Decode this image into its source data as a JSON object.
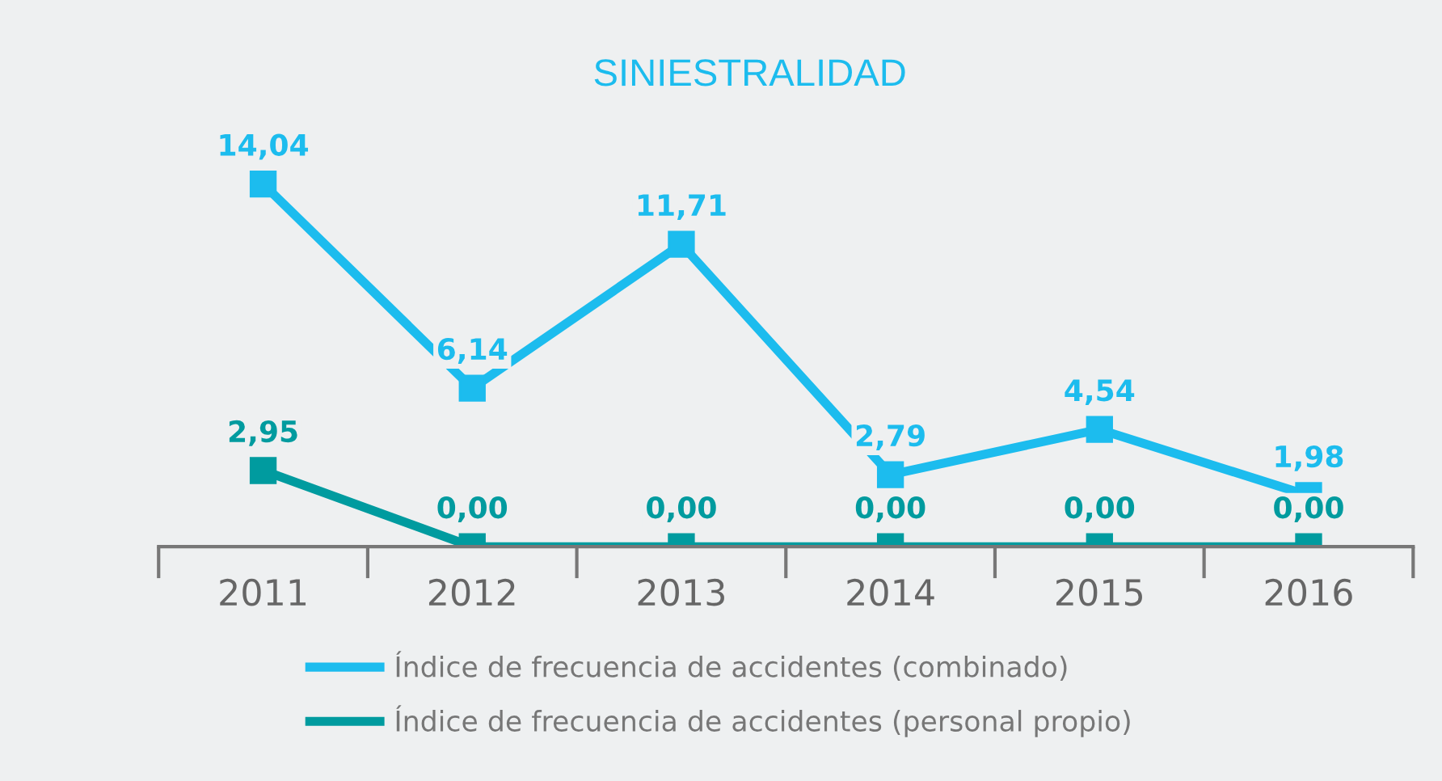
{
  "chart_data": {
    "type": "line",
    "title": "SINIESTRALIDAD",
    "categories": [
      "2011",
      "2012",
      "2013",
      "2014",
      "2015",
      "2016"
    ],
    "series": [
      {
        "name": "Índice de frecuencia de accidentes (combinado)",
        "color": "#1cbcee",
        "values": [
          14.04,
          6.14,
          11.71,
          2.79,
          4.54,
          1.98
        ],
        "value_labels": [
          "14,04",
          "6,14",
          "11,71",
          "2,79",
          "4,54",
          "1,98"
        ]
      },
      {
        "name": "Índice de frecuencia de accidentes (personal propio)",
        "color": "#009b9f",
        "values": [
          2.95,
          0.0,
          0.0,
          0.0,
          0.0,
          0.0
        ],
        "value_labels": [
          "2,95",
          "0,00",
          "0,00",
          "0,00",
          "0,00",
          "0,00"
        ]
      }
    ],
    "marker": "square",
    "line_style": "solid",
    "grid": false,
    "legend": "bottom"
  }
}
